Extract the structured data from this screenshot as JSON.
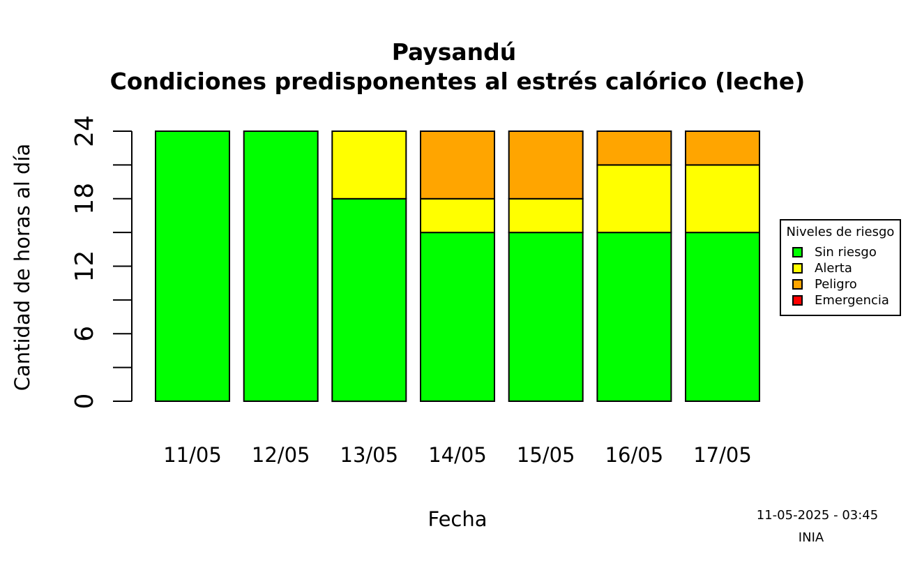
{
  "chart_data": {
    "type": "bar",
    "stacked": true,
    "title": "Paysandú",
    "subtitle": "Condiciones predisponentes al estrés calórico (leche)",
    "xlabel": "Fecha",
    "ylabel": "Cantidad de horas al día",
    "ylim": [
      0,
      24
    ],
    "yticks": [
      0,
      6,
      12,
      18,
      24
    ],
    "categories": [
      "11/05",
      "12/05",
      "13/05",
      "14/05",
      "15/05",
      "16/05",
      "17/05"
    ],
    "series": [
      {
        "name": "Sin riesgo",
        "color": "#00ff00",
        "values": [
          24,
          24,
          18,
          15,
          15,
          15,
          15
        ]
      },
      {
        "name": "Alerta",
        "color": "#ffff00",
        "values": [
          0,
          0,
          6,
          3,
          3,
          6,
          6
        ]
      },
      {
        "name": "Peligro",
        "color": "#ffa500",
        "values": [
          0,
          0,
          0,
          6,
          6,
          3,
          3
        ]
      },
      {
        "name": "Emergencia",
        "color": "#ff0000",
        "values": [
          0,
          0,
          0,
          0,
          0,
          0,
          0
        ]
      }
    ],
    "legend": {
      "title": "Niveles de riesgo",
      "position": "right"
    },
    "grid": false
  },
  "footer": {
    "timestamp": "11-05-2025 - 03:45",
    "source": "INIA"
  }
}
